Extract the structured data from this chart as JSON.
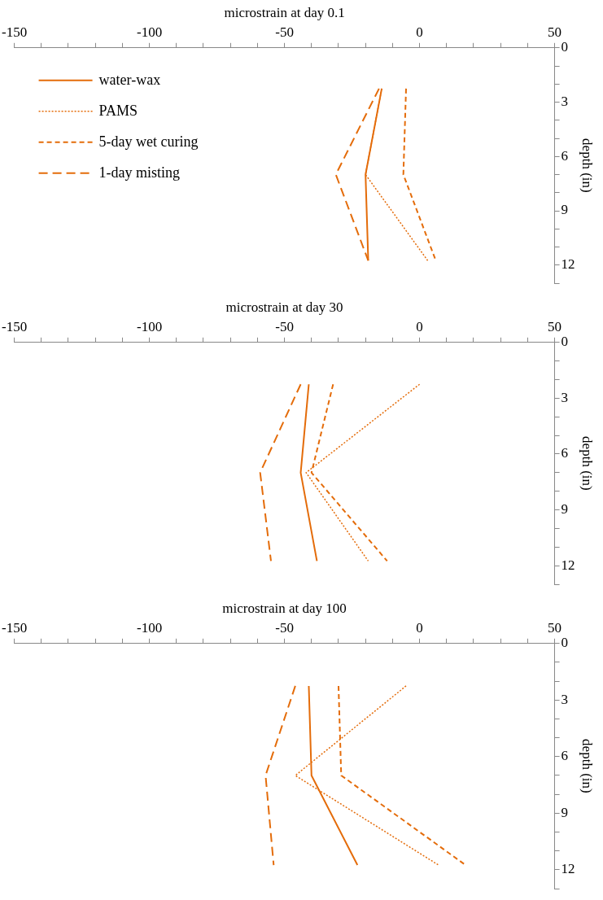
{
  "chart_data": [
    {
      "type": "line",
      "xlabel": "microstrain at day 0.1",
      "ylabel": "depth (in)",
      "xlim": [
        -150,
        50
      ],
      "ylim": [
        13,
        0
      ],
      "xticks": [
        -150,
        {
          "value": -140,
          "label": null
        },
        {
          "value": -130,
          "label": null
        },
        {
          "value": -120,
          "label": null
        },
        {
          "value": -110,
          "label": null
        },
        -100,
        {
          "value": -90,
          "label": null
        },
        {
          "value": -80,
          "label": null
        },
        {
          "value": -70,
          "label": null
        },
        {
          "value": -60,
          "label": null
        },
        -50,
        {
          "value": -40,
          "label": null
        },
        {
          "value": -30,
          "label": null
        },
        {
          "value": -20,
          "label": null
        },
        {
          "value": -10,
          "label": null
        },
        0,
        {
          "value": 10,
          "label": null
        },
        {
          "value": 20,
          "label": null
        },
        {
          "value": 30,
          "label": null
        },
        {
          "value": 40,
          "label": null
        },
        50
      ],
      "yticks": [
        0,
        {
          "value": 1,
          "label": null
        },
        {
          "value": 2,
          "label": null
        },
        3,
        {
          "value": 4,
          "label": null
        },
        {
          "value": 5,
          "label": null
        },
        6,
        {
          "value": 7,
          "label": null
        },
        {
          "value": 8,
          "label": null
        },
        9,
        {
          "value": 10,
          "label": null
        },
        {
          "value": 11,
          "label": null
        },
        12,
        {
          "value": 13,
          "label": null
        }
      ],
      "grid": false,
      "legend": "top left",
      "marker": "none",
      "series": [
        {
          "name": "water-wax",
          "color": "#e46c0a",
          "line_style": "solid",
          "x": [
            -14,
            -20,
            -19
          ],
          "values": [
            2.25,
            7,
            11.75
          ]
        },
        {
          "name": "PAMS",
          "color": "#e46c0a",
          "line_style": "dotted",
          "x": [
            -14,
            -20,
            3
          ],
          "values": [
            2.25,
            7,
            11.75
          ]
        },
        {
          "name": "5-day wet curing",
          "color": "#e46c0a",
          "line_style": "dashed",
          "x": [
            -5,
            -6,
            6
          ],
          "values": [
            2.25,
            7,
            11.75
          ]
        },
        {
          "name": "1-day misting",
          "color": "#e46c0a",
          "line_style": "dashed",
          "x": [
            -15,
            -31,
            -19
          ],
          "values": [
            2.25,
            7,
            11.75
          ]
        }
      ]
    },
    {
      "type": "line",
      "xlabel": "microstrain at day 30",
      "ylabel": "depth (in)",
      "xlim": [
        -150,
        50
      ],
      "ylim": [
        13,
        0
      ],
      "xticks": [
        -150,
        {
          "value": -140,
          "label": null
        },
        {
          "value": -130,
          "label": null
        },
        {
          "value": -120,
          "label": null
        },
        {
          "value": -110,
          "label": null
        },
        -100,
        {
          "value": -90,
          "label": null
        },
        {
          "value": -80,
          "label": null
        },
        {
          "value": -70,
          "label": null
        },
        {
          "value": -60,
          "label": null
        },
        -50,
        {
          "value": -40,
          "label": null
        },
        {
          "value": -30,
          "label": null
        },
        {
          "value": -20,
          "label": null
        },
        {
          "value": -10,
          "label": null
        },
        0,
        {
          "value": 10,
          "label": null
        },
        {
          "value": 20,
          "label": null
        },
        {
          "value": 30,
          "label": null
        },
        {
          "value": 40,
          "label": null
        },
        50
      ],
      "yticks": [
        0,
        {
          "value": 1,
          "label": null
        },
        {
          "value": 2,
          "label": null
        },
        3,
        {
          "value": 4,
          "label": null
        },
        {
          "value": 5,
          "label": null
        },
        6,
        {
          "value": 7,
          "label": null
        },
        {
          "value": 8,
          "label": null
        },
        9,
        {
          "value": 10,
          "label": null
        },
        {
          "value": 11,
          "label": null
        },
        12,
        {
          "value": 13,
          "label": null
        }
      ],
      "grid": false,
      "marker": "none",
      "series": [
        {
          "color": "#e46c0a",
          "line_style": "solid",
          "x": [
            -41,
            -44,
            -38
          ],
          "values": [
            2.25,
            7,
            11.75
          ]
        },
        {
          "color": "#e46c0a",
          "line_style": "dotted",
          "x": [
            0,
            -42,
            -19
          ],
          "values": [
            2.25,
            7,
            11.75
          ]
        },
        {
          "color": "#e46c0a",
          "line_style": "dashed",
          "x": [
            -32,
            -40,
            -12
          ],
          "values": [
            2.25,
            7,
            11.75
          ]
        },
        {
          "color": "#e46c0a",
          "line_style": "dashed",
          "x": [
            -44,
            -59,
            -55
          ],
          "values": [
            2.25,
            7,
            11.75
          ]
        }
      ]
    },
    {
      "type": "line",
      "xlabel": "microstrain at day 100",
      "ylabel": "depth (in)",
      "xlim": [
        -150,
        50
      ],
      "ylim": [
        13,
        0
      ],
      "xticks": [
        -150,
        {
          "value": -140,
          "label": null
        },
        {
          "value": -130,
          "label": null
        },
        {
          "value": -120,
          "label": null
        },
        {
          "value": -110,
          "label": null
        },
        -100,
        {
          "value": -90,
          "label": null
        },
        {
          "value": -80,
          "label": null
        },
        {
          "value": -70,
          "label": null
        },
        {
          "value": -60,
          "label": null
        },
        -50,
        {
          "value": -40,
          "label": null
        },
        {
          "value": -30,
          "label": null
        },
        {
          "value": -20,
          "label": null
        },
        {
          "value": -10,
          "label": null
        },
        0,
        {
          "value": 10,
          "label": null
        },
        {
          "value": 20,
          "label": null
        },
        {
          "value": 30,
          "label": null
        },
        {
          "value": 40,
          "label": null
        },
        50
      ],
      "yticks": [
        0,
        {
          "value": 1,
          "label": null
        },
        {
          "value": 2,
          "label": null
        },
        3,
        {
          "value": 4,
          "label": null
        },
        {
          "value": 5,
          "label": null
        },
        6,
        {
          "value": 7,
          "label": null
        },
        {
          "value": 8,
          "label": null
        },
        9,
        {
          "value": 10,
          "label": null
        },
        {
          "value": 11,
          "label": null
        },
        12,
        {
          "value": 13,
          "label": null
        }
      ],
      "grid": false,
      "marker": "none",
      "series": [
        {
          "color": "#e46c0a",
          "line_style": "solid",
          "x": [
            -41,
            -40,
            -23
          ],
          "values": [
            2.25,
            7,
            11.75
          ]
        },
        {
          "color": "#e46c0a",
          "line_style": "dotted",
          "x": [
            -5,
            -46,
            7
          ],
          "values": [
            2.25,
            7,
            11.75
          ]
        },
        {
          "color": "#e46c0a",
          "line_style": "dashed",
          "x": [
            -30,
            -29,
            17
          ],
          "values": [
            2.25,
            7,
            11.75
          ]
        },
        {
          "color": "#e46c0a",
          "line_style": "dashed",
          "x": [
            -46,
            -57,
            -54
          ],
          "values": [
            2.25,
            7,
            11.75
          ]
        }
      ]
    }
  ]
}
